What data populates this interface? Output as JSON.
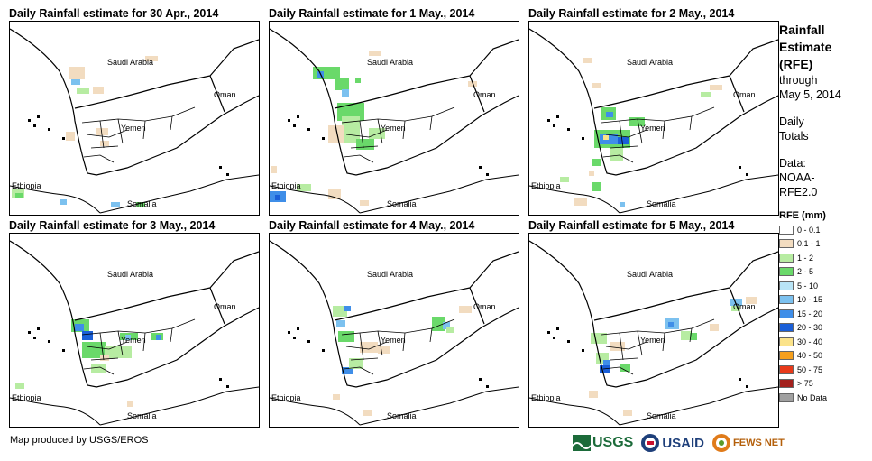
{
  "panels": [
    {
      "title": "Daily Rainfall estimate for 30 Apr., 2014",
      "labels": {
        "saudi": "Saudi Arabia",
        "oman": "Oman",
        "yemen": "Yemen",
        "ethiopia": "Ethiopia",
        "somalia": "Somalia"
      }
    },
    {
      "title": "Daily Rainfall estimate for 1 May., 2014",
      "labels": {
        "saudi": "Saudi Arabia",
        "oman": "Oman",
        "yemen": "Yemen",
        "ethiopia": "Ethiopia",
        "somalia": "Somalia"
      }
    },
    {
      "title": "Daily Rainfall estimate for 2 May., 2014",
      "labels": {
        "saudi": "Saudi Arabia",
        "oman": "Oman",
        "yemen": "Yemen",
        "ethiopia": "Ethiopia",
        "somalia": "Somalia"
      }
    },
    {
      "title": "Daily Rainfall estimate for 3 May., 2014",
      "labels": {
        "saudi": "Saudi Arabia",
        "oman": "Oman",
        "yemen": "Yemen",
        "ethiopia": "Ethiopia",
        "somalia": "Somalia"
      }
    },
    {
      "title": "Daily Rainfall estimate for 4 May., 2014",
      "labels": {
        "saudi": "Saudi Arabia",
        "oman": "Oman",
        "yemen": "Yemen",
        "ethiopia": "Ethiopia",
        "somalia": "Somalia"
      }
    },
    {
      "title": "Daily Rainfall estimate for 5 May., 2014",
      "labels": {
        "saudi": "Saudi Arabia",
        "oman": "Oman",
        "yemen": "Yemen",
        "ethiopia": "Ethiopia",
        "somalia": "Somalia"
      }
    }
  ],
  "sidebar": {
    "title_1": "Rainfall",
    "title_2": "Estimate",
    "title_3": "(RFE)",
    "through": "through",
    "date": "May 5, 2014",
    "daily_1": "Daily",
    "daily_2": "Totals",
    "data_1": "Data:",
    "data_2": "NOAA-",
    "data_3": "RFE2.0"
  },
  "legend": {
    "title": "RFE (mm)",
    "items": [
      {
        "label": "0 - 0.1",
        "color": "#ffffff"
      },
      {
        "label": "0.1 - 1",
        "color": "#f2dcc0"
      },
      {
        "label": "1 - 2",
        "color": "#b7eca2"
      },
      {
        "label": "2 - 5",
        "color": "#6ad96a"
      },
      {
        "label": "5 - 10",
        "color": "#b8e4f6"
      },
      {
        "label": "10 - 15",
        "color": "#7cc1ef"
      },
      {
        "label": "15 - 20",
        "color": "#3f8ee8"
      },
      {
        "label": "20 - 30",
        "color": "#1a5fd8"
      },
      {
        "label": "30 - 40",
        "color": "#fbe38a"
      },
      {
        "label": "40 - 50",
        "color": "#f59f1c"
      },
      {
        "label": "50 - 75",
        "color": "#e83a1a"
      },
      {
        "label": "> 75",
        "color": "#a3201c"
      },
      {
        "label": "No Data",
        "color": "#a0a0a0"
      }
    ]
  },
  "footer": {
    "credit": "Map produced by USGS/EROS"
  },
  "logos": {
    "usgs": "USGS",
    "usaid": "USAID",
    "fewsnet": "FEWS NET"
  }
}
